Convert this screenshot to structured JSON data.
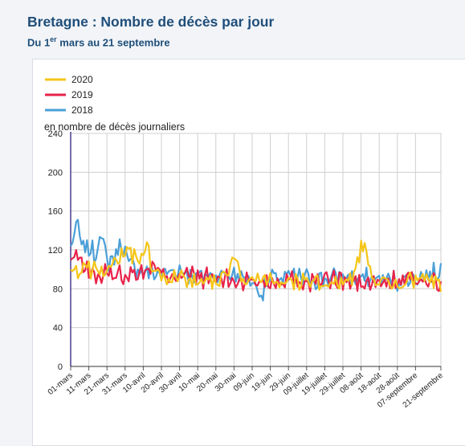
{
  "page": {
    "title": "Bretagne : Nombre de décès par jour",
    "subtitle_pre": "Du 1",
    "subtitle_sup": "er",
    "subtitle_post": " mars au 21 septembre"
  },
  "chart_data": {
    "type": "line",
    "ylabel": "en nombre de décès journaliers",
    "ylim": [
      0,
      240
    ],
    "yticks": [
      0,
      40,
      80,
      120,
      160,
      200,
      240
    ],
    "grid": true,
    "legend_position": "top-left",
    "x_tick_labels": [
      "01-mars",
      "11-mars",
      "21-mars",
      "31-mars",
      "10-avril",
      "20-avril",
      "30-avril",
      "10-mai",
      "20-mai",
      "30-mai",
      "09-juin",
      "19-juin",
      "29-juin",
      "09-juillet",
      "19-juillet",
      "29-juillet",
      "08-août",
      "18-août",
      "28-août",
      "07-septembre",
      "21-septembre"
    ],
    "x_tick_day_index": [
      0,
      10,
      20,
      30,
      40,
      50,
      60,
      70,
      80,
      90,
      100,
      110,
      120,
      130,
      140,
      150,
      160,
      170,
      180,
      190,
      204
    ],
    "n_days": 205,
    "series": [
      {
        "name": "2020",
        "color": "#f5c518"
      },
      {
        "name": "2019",
        "color": "#e8234a"
      },
      {
        "name": "2018",
        "color": "#4a9fd8"
      }
    ],
    "series_keypoints": {
      "2018": [
        [
          0,
          120
        ],
        [
          2,
          138
        ],
        [
          4,
          145
        ],
        [
          6,
          122
        ],
        [
          10,
          122
        ],
        [
          14,
          115
        ],
        [
          16,
          140
        ],
        [
          20,
          108
        ],
        [
          24,
          112
        ],
        [
          28,
          128
        ],
        [
          32,
          105
        ],
        [
          40,
          98
        ],
        [
          50,
          95
        ],
        [
          60,
          100
        ],
        [
          70,
          92
        ],
        [
          80,
          95
        ],
        [
          90,
          95
        ],
        [
          100,
          88
        ],
        [
          105,
          75
        ],
        [
          110,
          90
        ],
        [
          120,
          92
        ],
        [
          130,
          90
        ],
        [
          140,
          90
        ],
        [
          150,
          92
        ],
        [
          160,
          90
        ],
        [
          170,
          90
        ],
        [
          180,
          88
        ],
        [
          190,
          92
        ],
        [
          200,
          95
        ],
        [
          204,
          100
        ]
      ],
      "2019": [
        [
          0,
          105
        ],
        [
          2,
          115
        ],
        [
          5,
          110
        ],
        [
          10,
          98
        ],
        [
          15,
          92
        ],
        [
          20,
          95
        ],
        [
          30,
          95
        ],
        [
          40,
          98
        ],
        [
          45,
          102
        ],
        [
          50,
          95
        ],
        [
          60,
          95
        ],
        [
          70,
          92
        ],
        [
          80,
          90
        ],
        [
          90,
          88
        ],
        [
          100,
          88
        ],
        [
          110,
          88
        ],
        [
          120,
          90
        ],
        [
          130,
          88
        ],
        [
          140,
          90
        ],
        [
          150,
          88
        ],
        [
          160,
          85
        ],
        [
          170,
          85
        ],
        [
          180,
          88
        ],
        [
          190,
          90
        ],
        [
          200,
          88
        ],
        [
          204,
          82
        ]
      ],
      "2020": [
        [
          0,
          95
        ],
        [
          5,
          100
        ],
        [
          10,
          100
        ],
        [
          20,
          100
        ],
        [
          28,
          115
        ],
        [
          32,
          120
        ],
        [
          38,
          105
        ],
        [
          40,
          115
        ],
        [
          42,
          125
        ],
        [
          45,
          100
        ],
        [
          50,
          92
        ],
        [
          60,
          90
        ],
        [
          70,
          88
        ],
        [
          80,
          90
        ],
        [
          88,
          100
        ],
        [
          90,
          115
        ],
        [
          95,
          88
        ],
        [
          100,
          88
        ],
        [
          110,
          88
        ],
        [
          120,
          88
        ],
        [
          130,
          86
        ],
        [
          140,
          86
        ],
        [
          150,
          86
        ],
        [
          155,
          92
        ],
        [
          158,
          105
        ],
        [
          160,
          125
        ],
        [
          162,
          122
        ],
        [
          164,
          110
        ],
        [
          168,
          88
        ],
        [
          180,
          85
        ],
        [
          190,
          88
        ],
        [
          200,
          90
        ],
        [
          204,
          85
        ]
      ]
    },
    "series_noise": {
      "2018": 9,
      "2019": 9,
      "2020": 8
    }
  }
}
